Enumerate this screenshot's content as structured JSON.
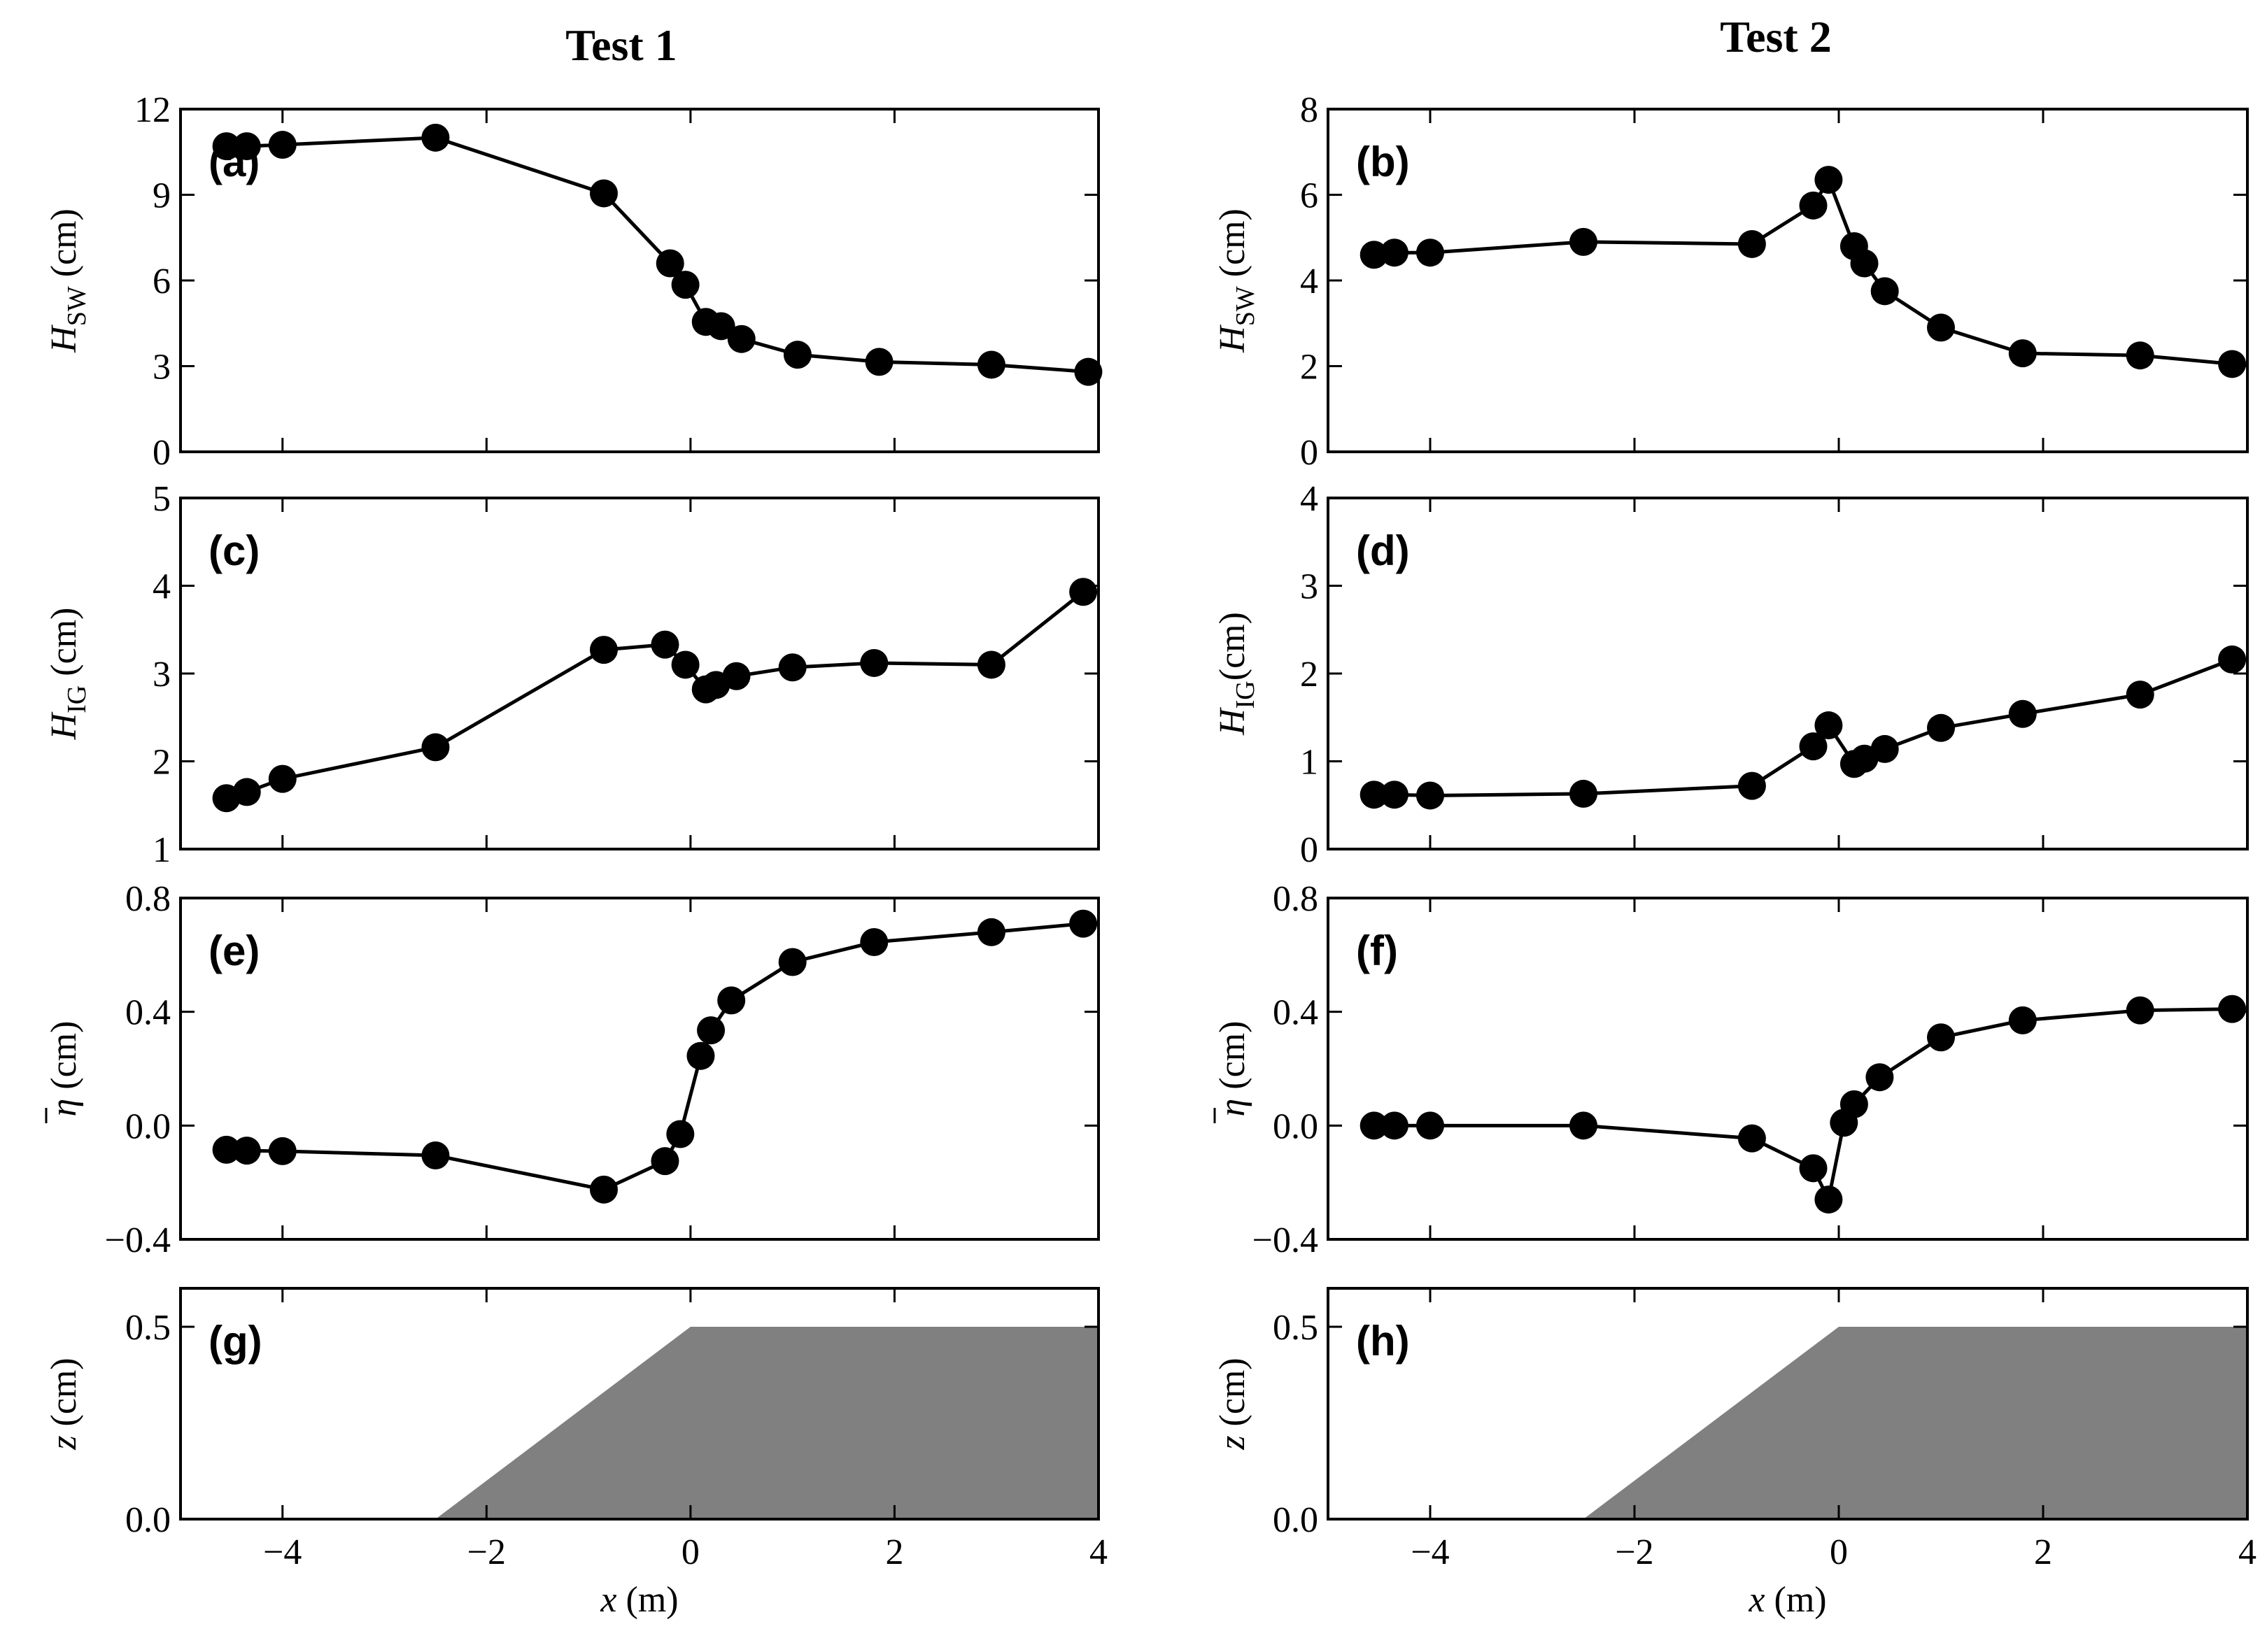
{
  "figure": {
    "columns": [
      {
        "title": "Test 1"
      },
      {
        "title": "Test 2"
      }
    ],
    "x_label": {
      "sym": "x",
      "unit": " (m)"
    }
  },
  "colors": {
    "marker": "#000000",
    "line": "#000000",
    "fill": "#808080",
    "frame": "#000000"
  },
  "chart_data": [
    {
      "id": "a",
      "panel_label": "(a)",
      "type": "line",
      "column": 0,
      "row": 0,
      "ylabel": {
        "sym": "H",
        "sub": "SW",
        "unit": " (cm)"
      },
      "xlim": [
        -5,
        4
      ],
      "ylim": [
        0,
        12
      ],
      "yticks": [
        0,
        3,
        6,
        9,
        12
      ],
      "ytick_labels": [
        "0",
        "3",
        "6",
        "9",
        "12"
      ],
      "x": [
        -4.55,
        -4.35,
        -4.0,
        -2.5,
        -0.85,
        -0.2,
        -0.05,
        0.15,
        0.3,
        0.5,
        1.05,
        1.85,
        2.95,
        3.9
      ],
      "y": [
        10.7,
        10.7,
        10.75,
        11.0,
        9.05,
        6.6,
        5.85,
        4.55,
        4.4,
        3.95,
        3.4,
        3.15,
        3.05,
        2.8
      ]
    },
    {
      "id": "b",
      "panel_label": "(b)",
      "type": "line",
      "column": 1,
      "row": 0,
      "ylabel": {
        "sym": "H",
        "sub": "SW",
        "unit": " (cm)"
      },
      "xlim": [
        -5,
        4
      ],
      "ylim": [
        0,
        8
      ],
      "yticks": [
        0,
        2,
        4,
        6,
        8
      ],
      "ytick_labels": [
        "0",
        "2",
        "4",
        "6",
        "8"
      ],
      "x": [
        -4.55,
        -4.35,
        -4.0,
        -2.5,
        -0.85,
        -0.25,
        -0.1,
        0.15,
        0.25,
        0.45,
        1.0,
        1.8,
        2.95,
        3.85
      ],
      "y": [
        4.6,
        4.65,
        4.65,
        4.9,
        4.85,
        5.75,
        6.35,
        4.8,
        4.4,
        3.75,
        2.9,
        2.3,
        2.25,
        2.05
      ]
    },
    {
      "id": "c",
      "panel_label": "(c)",
      "type": "line",
      "column": 0,
      "row": 1,
      "ylabel": {
        "sym": "H",
        "sub": "IG",
        "unit": " (cm)"
      },
      "xlim": [
        -5,
        4
      ],
      "ylim": [
        1,
        5
      ],
      "yticks": [
        1,
        2,
        3,
        4,
        5
      ],
      "ytick_labels": [
        "1",
        "2",
        "3",
        "4",
        "5"
      ],
      "x": [
        -4.55,
        -4.35,
        -4.0,
        -2.5,
        -0.85,
        -0.25,
        -0.05,
        0.15,
        0.25,
        0.45,
        1.0,
        1.8,
        2.95,
        3.85
      ],
      "y": [
        1.58,
        1.65,
        1.8,
        2.16,
        3.27,
        3.33,
        3.1,
        2.82,
        2.87,
        2.97,
        3.07,
        3.12,
        3.1,
        3.93
      ]
    },
    {
      "id": "d",
      "panel_label": "(d)",
      "type": "line",
      "column": 1,
      "row": 1,
      "ylabel": {
        "sym": "H",
        "sub": "IG",
        "unit": "(cm)"
      },
      "xlim": [
        -5,
        4
      ],
      "ylim": [
        0,
        4
      ],
      "yticks": [
        0,
        1,
        2,
        3,
        4
      ],
      "ytick_labels": [
        "0",
        "1",
        "2",
        "3",
        "4"
      ],
      "x": [
        -4.55,
        -4.35,
        -4.0,
        -2.5,
        -0.85,
        -0.25,
        -0.1,
        0.15,
        0.25,
        0.45,
        1.0,
        1.8,
        2.95,
        3.85
      ],
      "y": [
        0.62,
        0.62,
        0.61,
        0.63,
        0.72,
        1.17,
        1.41,
        0.97,
        1.03,
        1.14,
        1.38,
        1.54,
        1.76,
        2.16
      ]
    },
    {
      "id": "e",
      "panel_label": "(e)",
      "type": "line",
      "column": 0,
      "row": 2,
      "ylabel": {
        "sym": "η",
        "sub": "",
        "unit": " (cm)"
      },
      "xlim": [
        -5,
        4
      ],
      "ylim": [
        -0.4,
        0.8
      ],
      "yticks": [
        -0.4,
        0.0,
        0.4,
        0.8
      ],
      "ytick_labels": [
        "−0.4",
        "0.0",
        "0.4",
        "0.8"
      ],
      "x": [
        -4.55,
        -4.35,
        -4.0,
        -2.5,
        -0.85,
        -0.25,
        -0.1,
        0.1,
        0.2,
        0.4,
        1.0,
        1.8,
        2.95,
        3.85
      ],
      "y": [
        -0.085,
        -0.088,
        -0.09,
        -0.105,
        -0.225,
        -0.125,
        -0.03,
        0.245,
        0.335,
        0.44,
        0.575,
        0.645,
        0.68,
        0.71
      ]
    },
    {
      "id": "f",
      "panel_label": "(f)",
      "type": "line",
      "column": 1,
      "row": 2,
      "ylabel": {
        "sym": "η",
        "sub": "",
        "unit": " (cm)"
      },
      "xlim": [
        -5,
        4
      ],
      "ylim": [
        -0.4,
        0.8
      ],
      "yticks": [
        -0.4,
        0.0,
        0.4,
        0.8
      ],
      "ytick_labels": [
        "−0.4",
        "0.0",
        "0.4",
        "0.8"
      ],
      "x": [
        -4.55,
        -4.35,
        -4.0,
        -2.5,
        -0.85,
        -0.25,
        -0.1,
        0.05,
        0.15,
        0.4,
        1.0,
        1.8,
        2.95,
        3.85
      ],
      "y": [
        0.0,
        0.0,
        0.0,
        0.0,
        -0.045,
        -0.15,
        -0.26,
        0.01,
        0.075,
        0.17,
        0.31,
        0.37,
        0.405,
        0.41
      ]
    },
    {
      "id": "g",
      "panel_label": "(g)",
      "type": "area",
      "column": 0,
      "row": 3,
      "ylabel": {
        "sym": "z",
        "sub": "",
        "unit": "  (cm)"
      },
      "xlim": [
        -5,
        4
      ],
      "ylim": [
        0,
        0.6
      ],
      "yticks": [
        0.0,
        0.5
      ],
      "ytick_labels": [
        "0.0",
        "0.5"
      ],
      "x": [
        -2.5,
        0.0,
        4.0
      ],
      "y": [
        0.0,
        0.5,
        0.5
      ],
      "xticks": [
        -4,
        -2,
        0,
        2,
        4
      ],
      "xtick_labels": [
        "−4",
        "−2",
        "0",
        "2",
        "4"
      ]
    },
    {
      "id": "h",
      "panel_label": "(h)",
      "type": "area",
      "column": 1,
      "row": 3,
      "ylabel": {
        "sym": "z",
        "sub": "",
        "unit": "  (cm)"
      },
      "xlim": [
        -5,
        4
      ],
      "ylim": [
        0,
        0.6
      ],
      "yticks": [
        0.0,
        0.5
      ],
      "ytick_labels": [
        "0.0",
        "0.5"
      ],
      "x": [
        -2.5,
        0.0,
        4.0
      ],
      "y": [
        0.0,
        0.5,
        0.5
      ],
      "xticks": [
        -4,
        -2,
        0,
        2,
        4
      ],
      "xtick_labels": [
        "−4",
        "−2",
        "0",
        "2",
        "4"
      ]
    }
  ]
}
